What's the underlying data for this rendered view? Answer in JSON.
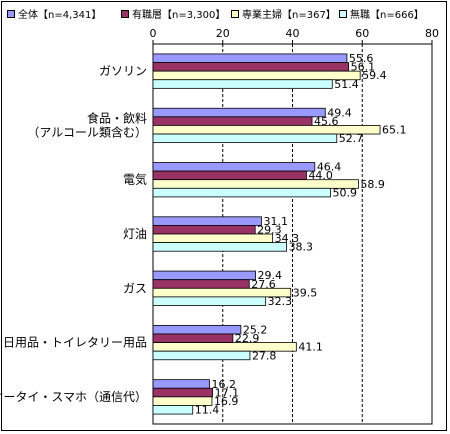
{
  "chart_data": {
    "type": "bar",
    "orientation": "horizontal",
    "categories": [
      "ガソリン",
      "食品・飲料（アルコール類含む）",
      "電気",
      "灯油",
      "ガス",
      "日用品・トイレタリー用品",
      "ケータイ・スマホ（通信代）"
    ],
    "category_lines": [
      [
        "ガソリン"
      ],
      [
        "食品・飲料",
        "（アルコール類含む）"
      ],
      [
        "電気"
      ],
      [
        "灯油"
      ],
      [
        "ガス"
      ],
      [
        "日用品・トイレタリー用品"
      ],
      [
        "ケータイ・スマホ（通信代）"
      ]
    ],
    "series": [
      {
        "name": "全体【n=4,341】",
        "color": "#9999ff",
        "values": [
          55.6,
          49.4,
          46.4,
          31.1,
          29.4,
          25.2,
          16.2
        ]
      },
      {
        "name": "有職層【n=3,300】",
        "color": "#993366",
        "values": [
          56.1,
          45.6,
          44.0,
          29.3,
          27.6,
          22.9,
          17.1
        ]
      },
      {
        "name": "専業主婦【n=367】",
        "color": "#ffffcc",
        "values": [
          59.4,
          65.1,
          58.9,
          34.3,
          39.5,
          41.1,
          16.9
        ]
      },
      {
        "name": "無職【n=666】",
        "color": "#ccffff",
        "values": [
          51.4,
          52.7,
          50.9,
          38.3,
          32.3,
          27.8,
          11.4
        ]
      }
    ],
    "xlim": [
      0,
      80
    ],
    "xticks": [
      0,
      20,
      40,
      60,
      80
    ],
    "grid": "vertical dashed at 20, 40, 60",
    "legend_position": "top",
    "xlabel": "",
    "ylabel": ""
  }
}
